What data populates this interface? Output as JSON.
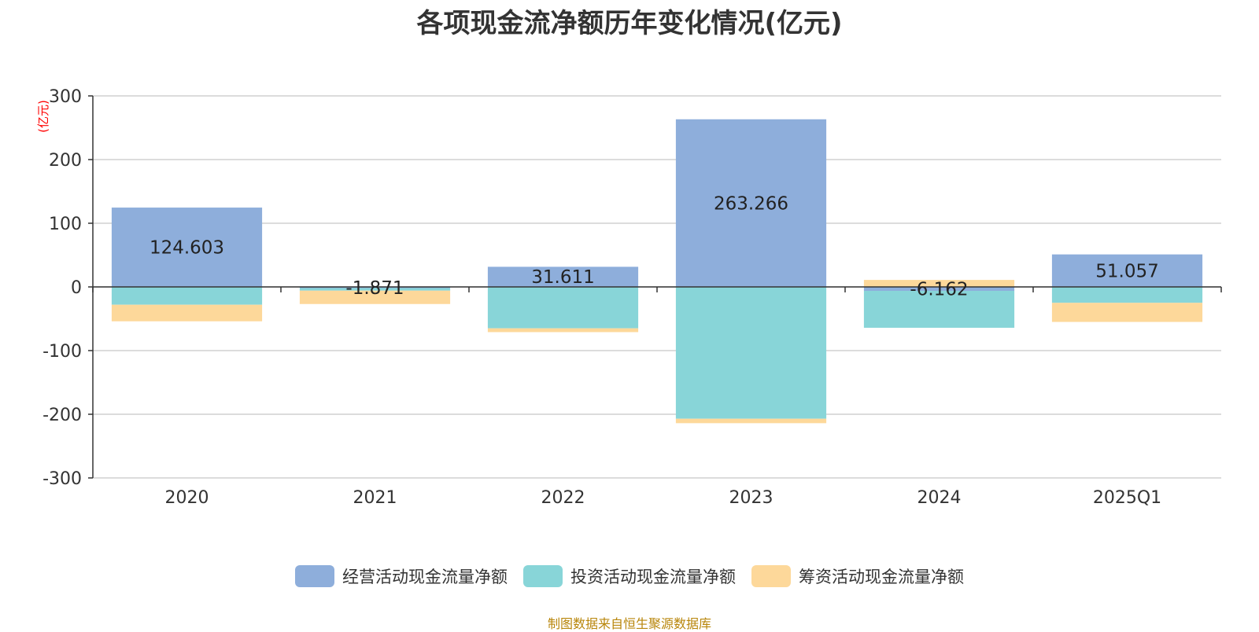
{
  "chart_data": {
    "type": "bar",
    "stacked": true,
    "title": "各项现金流净额历年变化情况(亿元)",
    "ylabel": "(亿元)",
    "xlabel": "",
    "categories": [
      "2020",
      "2021",
      "2022",
      "2023",
      "2024",
      "2025Q1"
    ],
    "ylim": [
      -300,
      300
    ],
    "yticks": [
      300,
      200,
      100,
      0,
      -100,
      -200,
      -300
    ],
    "grid": true,
    "legend_position": "bottom",
    "series": [
      {
        "name": "经营活动现金流量净额",
        "color": "#8eaedb",
        "values": [
          124.603,
          -1.871,
          31.611,
          263.266,
          -6.162,
          51.057
        ],
        "labels": [
          "124.603",
          "-1.871",
          "31.611",
          "263.266",
          "-6.162",
          "51.057"
        ]
      },
      {
        "name": "投资活动现金流量净额",
        "color": "#88d5d8",
        "values": [
          -28,
          -4,
          -65,
          -207,
          -58,
          -25
        ]
      },
      {
        "name": "筹资活动现金流量净额",
        "color": "#fdd89a",
        "values": [
          -26,
          -21,
          -6,
          -7,
          11,
          -30
        ]
      }
    ]
  },
  "source_note": "制图数据来自恒生聚源数据库"
}
